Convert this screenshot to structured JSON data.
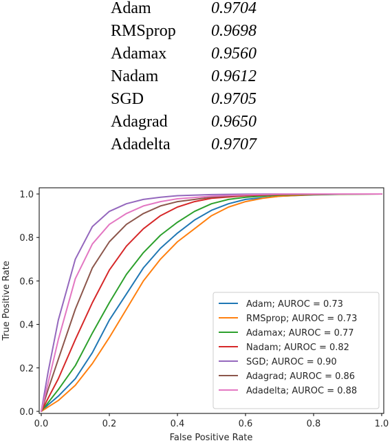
{
  "optimizer_table": [
    {
      "name": "Adam",
      "score": "0.9704"
    },
    {
      "name": "RMSprop",
      "score": "0.9698"
    },
    {
      "name": "Adamax",
      "score": "0.9560"
    },
    {
      "name": "Nadam",
      "score": "0.9612"
    },
    {
      "name": "SGD",
      "score": "0.9705"
    },
    {
      "name": "Adagrad",
      "score": "0.9650"
    },
    {
      "name": "Adadelta",
      "score": "0.9707"
    }
  ],
  "chart_data": {
    "type": "line",
    "title": "",
    "xlabel": "False Positive Rate",
    "ylabel": "True Positive Rate",
    "xlim": [
      0,
      1
    ],
    "ylim": [
      0,
      1.0
    ],
    "x_ticks": [
      "0.0",
      "0.2",
      "0.4",
      "0.6",
      "0.8",
      "1.0"
    ],
    "y_ticks": [
      "0.0",
      "0.2",
      "0.4",
      "0.6",
      "0.8",
      "1.0"
    ],
    "legend_position": "lower-right",
    "grid": false,
    "series": [
      {
        "name": "Adam; AUROC = 0.73",
        "color": "#1f77b4",
        "x": [
          0,
          0.02,
          0.05,
          0.1,
          0.15,
          0.2,
          0.25,
          0.3,
          0.35,
          0.4,
          0.45,
          0.5,
          0.55,
          0.6,
          0.7,
          0.8,
          0.9,
          1.0
        ],
        "y": [
          0,
          0.03,
          0.07,
          0.15,
          0.27,
          0.42,
          0.54,
          0.66,
          0.75,
          0.82,
          0.88,
          0.925,
          0.955,
          0.975,
          0.99,
          0.996,
          0.999,
          1.0
        ]
      },
      {
        "name": "RMSprop; AUROC = 0.73",
        "color": "#ff7f0e",
        "x": [
          0,
          0.02,
          0.05,
          0.1,
          0.15,
          0.2,
          0.25,
          0.3,
          0.35,
          0.4,
          0.45,
          0.5,
          0.55,
          0.6,
          0.65,
          0.7,
          0.8,
          0.9,
          1.0
        ],
        "y": [
          0,
          0.02,
          0.05,
          0.12,
          0.22,
          0.34,
          0.47,
          0.6,
          0.7,
          0.78,
          0.84,
          0.9,
          0.94,
          0.965,
          0.98,
          0.99,
          0.997,
          0.999,
          1.0
        ]
      },
      {
        "name": "Adamax; AUROC = 0.77",
        "color": "#2ca02c",
        "x": [
          0,
          0.02,
          0.05,
          0.1,
          0.15,
          0.2,
          0.25,
          0.3,
          0.35,
          0.4,
          0.45,
          0.5,
          0.55,
          0.6,
          0.7,
          0.8,
          0.9,
          1.0
        ],
        "y": [
          0,
          0.04,
          0.1,
          0.21,
          0.36,
          0.5,
          0.63,
          0.73,
          0.81,
          0.87,
          0.92,
          0.955,
          0.975,
          0.985,
          0.995,
          0.998,
          0.999,
          1.0
        ]
      },
      {
        "name": "Nadam; AUROC = 0.82",
        "color": "#d62728",
        "x": [
          0,
          0.02,
          0.05,
          0.1,
          0.15,
          0.2,
          0.25,
          0.3,
          0.35,
          0.4,
          0.45,
          0.5,
          0.6,
          0.7,
          0.8,
          0.9,
          1.0
        ],
        "y": [
          0,
          0.06,
          0.15,
          0.33,
          0.5,
          0.65,
          0.76,
          0.84,
          0.9,
          0.94,
          0.965,
          0.98,
          0.992,
          0.997,
          0.999,
          1.0,
          1.0
        ]
      },
      {
        "name": "SGD; AUROC = 0.90",
        "color": "#9467bd",
        "x": [
          0,
          0.02,
          0.05,
          0.1,
          0.15,
          0.2,
          0.25,
          0.3,
          0.35,
          0.4,
          0.5,
          0.6,
          0.7,
          0.8,
          0.9,
          1.0
        ],
        "y": [
          0,
          0.18,
          0.42,
          0.7,
          0.85,
          0.92,
          0.955,
          0.975,
          0.985,
          0.992,
          0.997,
          0.999,
          1.0,
          1.0,
          1.0,
          1.0
        ]
      },
      {
        "name": "Adagrad; AUROC = 0.86",
        "color": "#8c564b",
        "x": [
          0,
          0.02,
          0.05,
          0.1,
          0.15,
          0.2,
          0.25,
          0.3,
          0.35,
          0.4,
          0.5,
          0.6,
          0.7,
          0.8,
          0.9,
          1.0
        ],
        "y": [
          0,
          0.1,
          0.24,
          0.47,
          0.66,
          0.78,
          0.86,
          0.91,
          0.945,
          0.965,
          0.985,
          0.995,
          0.998,
          1.0,
          1.0,
          1.0
        ]
      },
      {
        "name": "Adadelta; AUROC = 0.88",
        "color": "#e377c2",
        "x": [
          0,
          0.02,
          0.05,
          0.1,
          0.15,
          0.2,
          0.25,
          0.3,
          0.35,
          0.4,
          0.5,
          0.6,
          0.7,
          0.8,
          0.9,
          1.0
        ],
        "y": [
          0,
          0.13,
          0.33,
          0.61,
          0.77,
          0.86,
          0.91,
          0.945,
          0.965,
          0.978,
          0.99,
          0.996,
          0.999,
          1.0,
          1.0,
          1.0
        ]
      }
    ]
  }
}
